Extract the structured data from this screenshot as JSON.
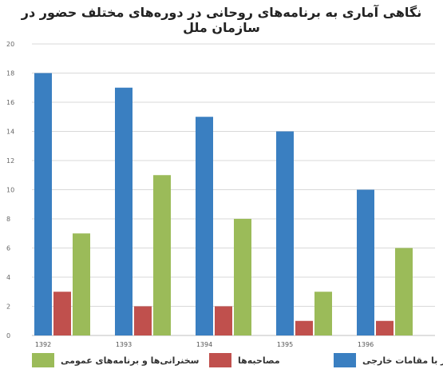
{
  "chart_data": {
    "type": "bar",
    "title": "نگاهی آماری به برنامه‌های روحانی در دوره‌های مختلف حضور در سازمان ملل",
    "categories": [
      "1392",
      "1393",
      "1394",
      "1395",
      "1396"
    ],
    "ylim": [
      0,
      20
    ],
    "yticks": [
      0,
      2,
      4,
      6,
      8,
      10,
      12,
      14,
      16,
      18,
      20
    ],
    "grid": true,
    "legend_position": "bottom",
    "series": [
      {
        "name": "دیدار با مقامات خارجی",
        "values": [
          18,
          17,
          15,
          14,
          10
        ],
        "color": "#3a7fc1"
      },
      {
        "name": "مصاحبه‌ها",
        "values": [
          3,
          2,
          2,
          1,
          1
        ],
        "color": "#c0504d"
      },
      {
        "name": "سخنرانی‌ها و برنامه‌های عمومی",
        "values": [
          7,
          11,
          8,
          3,
          6
        ],
        "color": "#9bbb59"
      }
    ]
  }
}
